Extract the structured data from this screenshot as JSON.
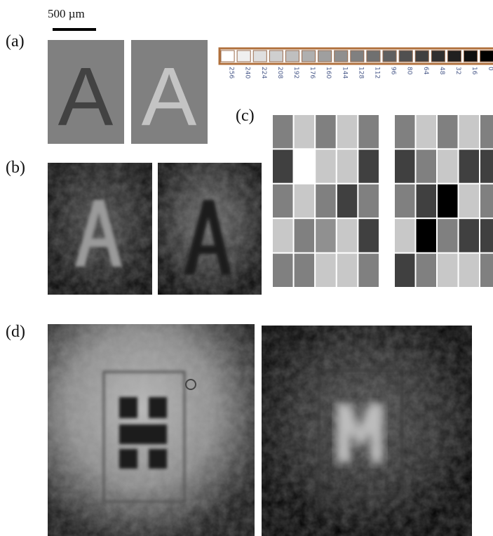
{
  "scale_bar": {
    "label": "500 µm"
  },
  "panels": [
    {
      "label": "(a)",
      "letters": [
        "A",
        "A"
      ]
    },
    {
      "label": "(b)"
    },
    {
      "label": "(c)"
    },
    {
      "label": "(d)"
    }
  ],
  "colorbar": {
    "labels": [
      256,
      240,
      224,
      208,
      192,
      176,
      160,
      144,
      128,
      112,
      96,
      80,
      64,
      48,
      32,
      16,
      0
    ]
  }
}
